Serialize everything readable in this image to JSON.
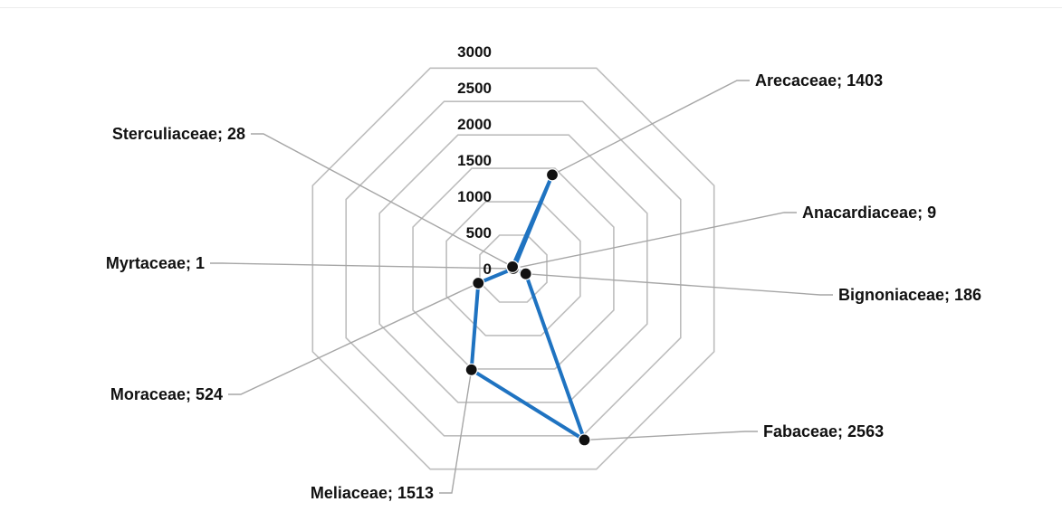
{
  "chart_data": {
    "type": "radar",
    "categories": [
      "Arecaceae",
      "Anacardiaceae",
      "Bignoniaceae",
      "Fabaceae",
      "Meliaceae",
      "Moraceae",
      "Myrtaceae",
      "Sterculiaceae"
    ],
    "values": [
      1403,
      9,
      186,
      2563,
      1513,
      524,
      1,
      28
    ],
    "data_labels": [
      "Arecaceae; 1403",
      "Anacardiaceae; 9",
      "Bignoniaceae; 186",
      "Fabaceae; 2563",
      "Meliaceae; 1513",
      "Moraceae; 524",
      "Myrtaceae; 1",
      "Sterculiaceae; 28"
    ],
    "axis_ticks": [
      "0",
      "500",
      "1000",
      "1500",
      "2000",
      "2500",
      "3000"
    ],
    "tick_values": [
      0,
      500,
      1000,
      1500,
      2000,
      2500,
      3000
    ],
    "rmax": 3000,
    "grid": true,
    "colors": {
      "series": "#1f73c1",
      "marker": "#111111",
      "grid": "#bdbdbd",
      "leader": "#a6a6a6"
    }
  }
}
